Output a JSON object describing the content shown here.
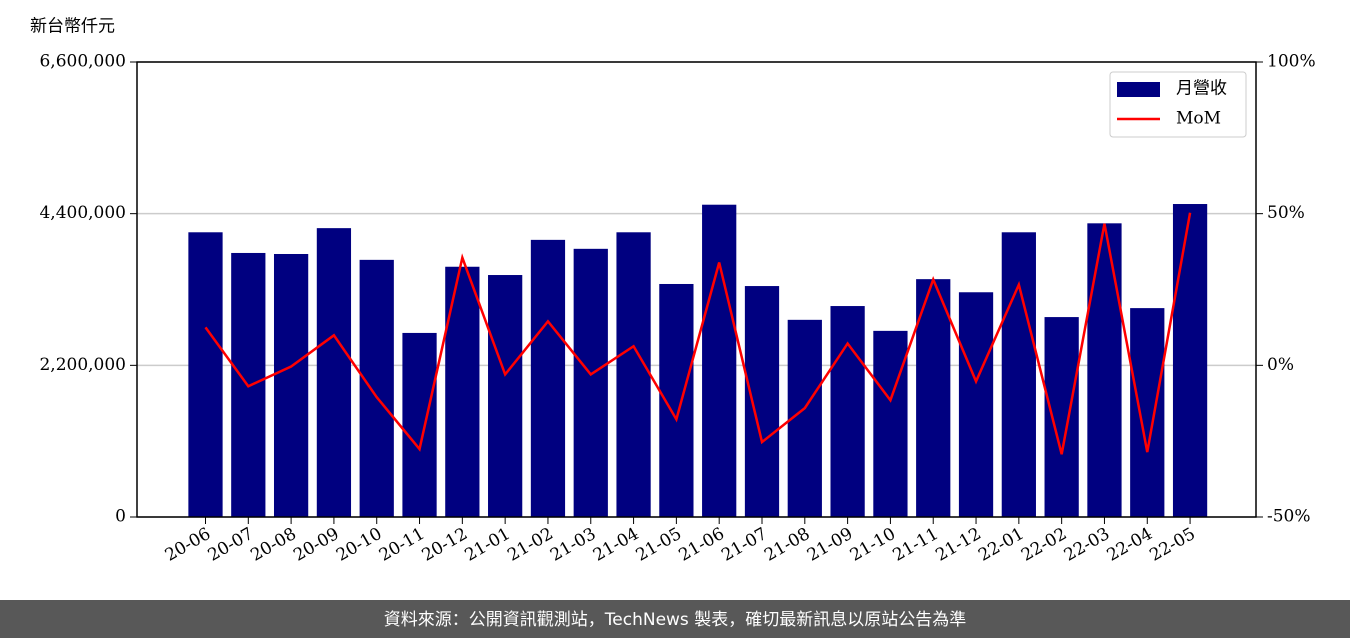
{
  "chart_data": {
    "type": "bar",
    "y_unit_label": "新台幣仟元",
    "categories": [
      "20-06",
      "20-07",
      "20-08",
      "20-09",
      "20-10",
      "20-11",
      "20-12",
      "21-01",
      "21-02",
      "21-03",
      "21-04",
      "21-05",
      "21-06",
      "21-07",
      "21-08",
      "21-09",
      "21-10",
      "21-11",
      "21-12",
      "22-01",
      "22-02",
      "22-03",
      "22-04",
      "22-05"
    ],
    "series": [
      {
        "name": "月營收",
        "color": "#000080",
        "values": [
          4130000,
          3830000,
          3815000,
          4190000,
          3730000,
          2670000,
          3630000,
          3510000,
          4020000,
          3890000,
          4130000,
          3380000,
          4530000,
          3350000,
          2860000,
          3060000,
          2700000,
          3450000,
          3260000,
          4130000,
          2900000,
          4260000,
          3030000,
          4540000
        ]
      },
      {
        "name": "MoM",
        "color": "#ff0000",
        "type": "line",
        "axis": "y2",
        "values": [
          12.5,
          -6.9,
          -0.4,
          9.9,
          -10.5,
          -27.6,
          35.5,
          -3,
          14.5,
          -3,
          6.3,
          -17.8,
          33.9,
          -25.3,
          -14.1,
          7.2,
          -11.5,
          28.3,
          -5.3,
          26.6,
          -29.3,
          46.7,
          -28.6,
          50.3
        ]
      }
    ],
    "ylim": [
      0,
      6600000
    ],
    "yticks": [
      0,
      {
        "value": 2200000,
        "label": "2,200,000"
      },
      {
        "value": 4400000,
        "label": "4,400,000"
      },
      {
        "value": 6600000,
        "label": "6,600,000"
      }
    ],
    "y2lim": [
      -50,
      100
    ],
    "y2ticks": [
      {
        "value": -50,
        "label": "-50%"
      },
      {
        "value": 0,
        "label": "0%"
      },
      {
        "value": 50,
        "label": "50%"
      },
      {
        "value": 100,
        "label": "100%"
      }
    ],
    "grid": true,
    "legend": "upper right"
  },
  "footer": {
    "text": "資料來源：公開資訊觀測站，TechNews 製表，確切最新訊息以原站公告為準"
  }
}
